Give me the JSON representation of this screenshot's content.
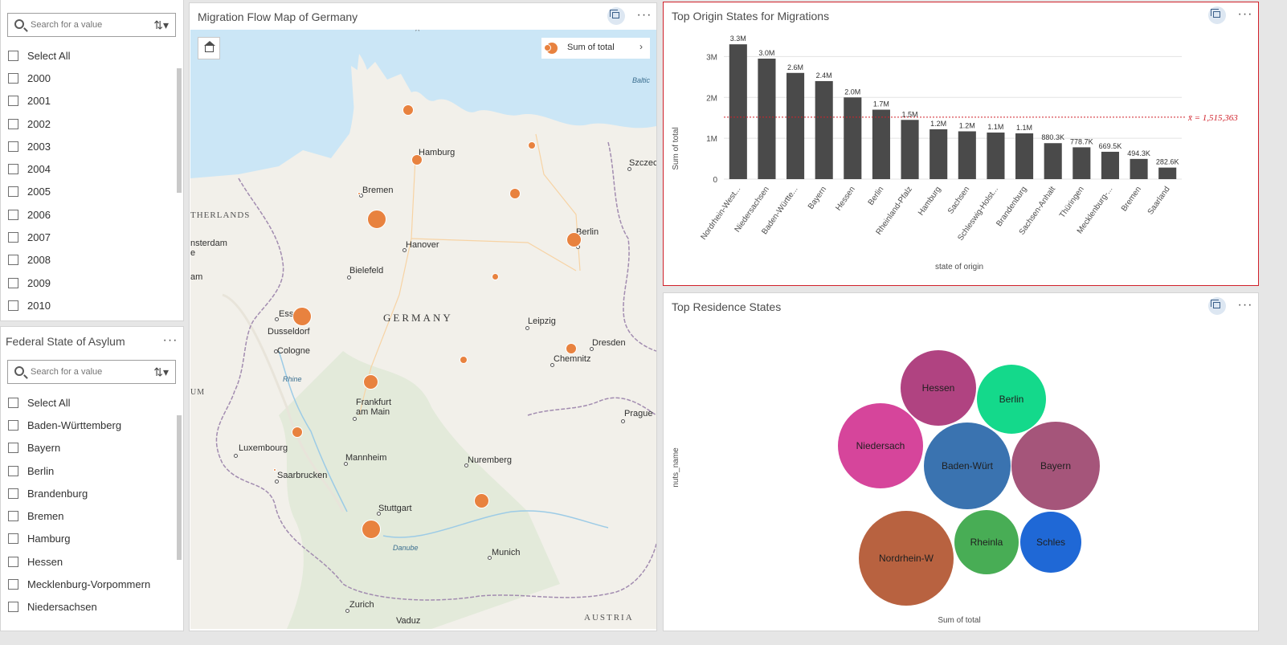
{
  "year_filter": {
    "search_placeholder": "Search for a value",
    "select_all": "Select All",
    "items": [
      "2000",
      "2001",
      "2002",
      "2003",
      "2004",
      "2005",
      "2006",
      "2007",
      "2008",
      "2009",
      "2010"
    ]
  },
  "state_filter": {
    "title": "Federal State of Asylum",
    "search_placeholder": "Search for a value",
    "select_all": "Select All",
    "items": [
      "Baden-Württemberg",
      "Bayern",
      "Berlin",
      "Brandenburg",
      "Bremen",
      "Hamburg",
      "Hessen",
      "Mecklenburg-Vorpommern",
      "Niedersachsen"
    ]
  },
  "map": {
    "title": "Migration Flow Map of Germany",
    "legend_label": "Sum of total",
    "labels": {
      "baltic": "Baltic",
      "szczecin": "Szczecin",
      "hamburg": "Hamburg",
      "bremen": "Bremen",
      "netherlands": "THERLANDS",
      "amsterdam": "nsterdam",
      "e": "e",
      "am": "am",
      "hanover": "Hanover",
      "berlin": "Berlin",
      "bielefeld": "Bielefeld",
      "essen": "Essen",
      "dusseldorf": "Dusseldorf",
      "germany": "GERMANY",
      "leipzig": "Leipzig",
      "cologne": "Cologne",
      "dresden": "Dresden",
      "chemnitz": "Chemnitz",
      "um": "UM",
      "rhine": "Rhine",
      "frankfurt": "Frankfurt am Main",
      "prague": "Prague",
      "luxembourg": "Luxembourg",
      "mannheim": "Mannheim",
      "nuremberg": "Nuremberg",
      "saarbrucken": "Saarbrucken",
      "stuttgart": "Stuttgart",
      "danube": "Danube",
      "munich": "Munich",
      "zurich": "Zurich",
      "vaduz": "Vaduz",
      "austria": "AUSTRIA"
    },
    "bubble_color": "#e8823f"
  },
  "origin_chart": {
    "title": "Top Origin States for Migrations",
    "border_color": "#d0202a",
    "bar_color": "#4a4a4a",
    "mean_color": "#d0202a",
    "mean_label": "x̄ = 1,515,363",
    "chart_data": {
      "type": "bar",
      "xlabel": "state of origin",
      "ylabel": "Sum of total",
      "ylim": [
        0,
        3500000
      ],
      "yticks": [
        "0",
        "1M",
        "2M",
        "3M"
      ],
      "mean": 1515363,
      "categories": [
        "Nordrhein-West...",
        "Niedersachsen",
        "Baden-Württe...",
        "Bayern",
        "Hessen",
        "Berlin",
        "Rheinland-Pfalz",
        "Hamburg",
        "Sachsen",
        "Schleswig-Holst...",
        "Brandenburg",
        "Sachsen-Anhalt",
        "Thüringen",
        "Mecklenburg-...",
        "Bremen",
        "Saarland"
      ],
      "values": [
        3300000,
        2950000,
        2600000,
        2400000,
        2000000,
        1700000,
        1450000,
        1220000,
        1170000,
        1140000,
        1120000,
        880300,
        778700,
        669500,
        494300,
        282600
      ],
      "labels": [
        "3.3M",
        "3.0M",
        "2.6M",
        "2.4M",
        "2.0M",
        "1.7M",
        "1.5M",
        "1.2M",
        "1.2M",
        "1.1M",
        "1.1M",
        "880.3K",
        "778.7K",
        "669.5K",
        "494.3K",
        "282.6K"
      ]
    }
  },
  "residence_chart": {
    "title": "Top Residence States",
    "chart_data": {
      "type": "bubble",
      "xlabel": "Sum of total",
      "ylabel": "nuts_name",
      "items": [
        {
          "label": "Hessen",
          "color": "#b04381"
        },
        {
          "label": "Berlin",
          "color": "#14d98b"
        },
        {
          "label": "Niedersach",
          "color": "#d6459b"
        },
        {
          "label": "Baden-Würt",
          "color": "#3a73b0"
        },
        {
          "label": "Bayern",
          "color": "#a5557a"
        },
        {
          "label": "Nordrhein-W",
          "color": "#b86240"
        },
        {
          "label": "Rheinla",
          "color": "#48ad55"
        },
        {
          "label": "Schles",
          "color": "#1f68d6"
        }
      ]
    }
  }
}
